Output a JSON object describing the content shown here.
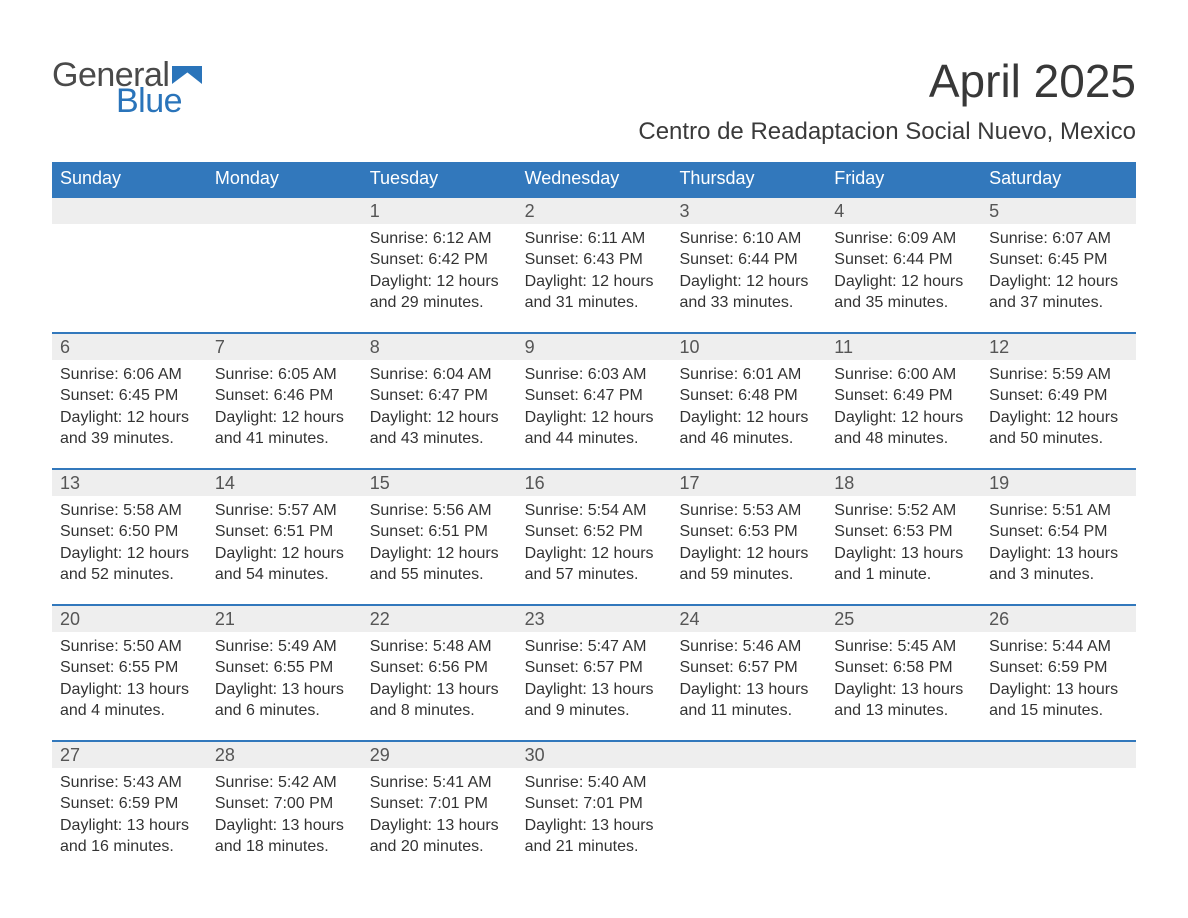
{
  "brand": {
    "word1": "General",
    "word2": "Blue",
    "tri_color": "#2a74ba",
    "text_gray": "#4a4a4a"
  },
  "title": "April 2025",
  "subtitle": "Centro de Readaptacion Social Nuevo, Mexico",
  "colors": {
    "header_bg": "#3278bc",
    "header_text": "#ffffff",
    "week_top_border": "#3278bc",
    "daynum_bg": "#eeeeee",
    "body_text": "#333333",
    "background": "#ffffff"
  },
  "fonts": {
    "month_title_pt": 46,
    "subtitle_pt": 24,
    "header_pt": 18,
    "daynum_pt": 18,
    "body_pt": 16
  },
  "weekdays": [
    "Sunday",
    "Monday",
    "Tuesday",
    "Wednesday",
    "Thursday",
    "Friday",
    "Saturday"
  ],
  "weeks": [
    [
      null,
      null,
      {
        "n": "1",
        "sunrise": "Sunrise: 6:12 AM",
        "sunset": "Sunset: 6:42 PM",
        "daylight": "Daylight: 12 hours and 29 minutes."
      },
      {
        "n": "2",
        "sunrise": "Sunrise: 6:11 AM",
        "sunset": "Sunset: 6:43 PM",
        "daylight": "Daylight: 12 hours and 31 minutes."
      },
      {
        "n": "3",
        "sunrise": "Sunrise: 6:10 AM",
        "sunset": "Sunset: 6:44 PM",
        "daylight": "Daylight: 12 hours and 33 minutes."
      },
      {
        "n": "4",
        "sunrise": "Sunrise: 6:09 AM",
        "sunset": "Sunset: 6:44 PM",
        "daylight": "Daylight: 12 hours and 35 minutes."
      },
      {
        "n": "5",
        "sunrise": "Sunrise: 6:07 AM",
        "sunset": "Sunset: 6:45 PM",
        "daylight": "Daylight: 12 hours and 37 minutes."
      }
    ],
    [
      {
        "n": "6",
        "sunrise": "Sunrise: 6:06 AM",
        "sunset": "Sunset: 6:45 PM",
        "daylight": "Daylight: 12 hours and 39 minutes."
      },
      {
        "n": "7",
        "sunrise": "Sunrise: 6:05 AM",
        "sunset": "Sunset: 6:46 PM",
        "daylight": "Daylight: 12 hours and 41 minutes."
      },
      {
        "n": "8",
        "sunrise": "Sunrise: 6:04 AM",
        "sunset": "Sunset: 6:47 PM",
        "daylight": "Daylight: 12 hours and 43 minutes."
      },
      {
        "n": "9",
        "sunrise": "Sunrise: 6:03 AM",
        "sunset": "Sunset: 6:47 PM",
        "daylight": "Daylight: 12 hours and 44 minutes."
      },
      {
        "n": "10",
        "sunrise": "Sunrise: 6:01 AM",
        "sunset": "Sunset: 6:48 PM",
        "daylight": "Daylight: 12 hours and 46 minutes."
      },
      {
        "n": "11",
        "sunrise": "Sunrise: 6:00 AM",
        "sunset": "Sunset: 6:49 PM",
        "daylight": "Daylight: 12 hours and 48 minutes."
      },
      {
        "n": "12",
        "sunrise": "Sunrise: 5:59 AM",
        "sunset": "Sunset: 6:49 PM",
        "daylight": "Daylight: 12 hours and 50 minutes."
      }
    ],
    [
      {
        "n": "13",
        "sunrise": "Sunrise: 5:58 AM",
        "sunset": "Sunset: 6:50 PM",
        "daylight": "Daylight: 12 hours and 52 minutes."
      },
      {
        "n": "14",
        "sunrise": "Sunrise: 5:57 AM",
        "sunset": "Sunset: 6:51 PM",
        "daylight": "Daylight: 12 hours and 54 minutes."
      },
      {
        "n": "15",
        "sunrise": "Sunrise: 5:56 AM",
        "sunset": "Sunset: 6:51 PM",
        "daylight": "Daylight: 12 hours and 55 minutes."
      },
      {
        "n": "16",
        "sunrise": "Sunrise: 5:54 AM",
        "sunset": "Sunset: 6:52 PM",
        "daylight": "Daylight: 12 hours and 57 minutes."
      },
      {
        "n": "17",
        "sunrise": "Sunrise: 5:53 AM",
        "sunset": "Sunset: 6:53 PM",
        "daylight": "Daylight: 12 hours and 59 minutes."
      },
      {
        "n": "18",
        "sunrise": "Sunrise: 5:52 AM",
        "sunset": "Sunset: 6:53 PM",
        "daylight": "Daylight: 13 hours and 1 minute."
      },
      {
        "n": "19",
        "sunrise": "Sunrise: 5:51 AM",
        "sunset": "Sunset: 6:54 PM",
        "daylight": "Daylight: 13 hours and 3 minutes."
      }
    ],
    [
      {
        "n": "20",
        "sunrise": "Sunrise: 5:50 AM",
        "sunset": "Sunset: 6:55 PM",
        "daylight": "Daylight: 13 hours and 4 minutes."
      },
      {
        "n": "21",
        "sunrise": "Sunrise: 5:49 AM",
        "sunset": "Sunset: 6:55 PM",
        "daylight": "Daylight: 13 hours and 6 minutes."
      },
      {
        "n": "22",
        "sunrise": "Sunrise: 5:48 AM",
        "sunset": "Sunset: 6:56 PM",
        "daylight": "Daylight: 13 hours and 8 minutes."
      },
      {
        "n": "23",
        "sunrise": "Sunrise: 5:47 AM",
        "sunset": "Sunset: 6:57 PM",
        "daylight": "Daylight: 13 hours and 9 minutes."
      },
      {
        "n": "24",
        "sunrise": "Sunrise: 5:46 AM",
        "sunset": "Sunset: 6:57 PM",
        "daylight": "Daylight: 13 hours and 11 minutes."
      },
      {
        "n": "25",
        "sunrise": "Sunrise: 5:45 AM",
        "sunset": "Sunset: 6:58 PM",
        "daylight": "Daylight: 13 hours and 13 minutes."
      },
      {
        "n": "26",
        "sunrise": "Sunrise: 5:44 AM",
        "sunset": "Sunset: 6:59 PM",
        "daylight": "Daylight: 13 hours and 15 minutes."
      }
    ],
    [
      {
        "n": "27",
        "sunrise": "Sunrise: 5:43 AM",
        "sunset": "Sunset: 6:59 PM",
        "daylight": "Daylight: 13 hours and 16 minutes."
      },
      {
        "n": "28",
        "sunrise": "Sunrise: 5:42 AM",
        "sunset": "Sunset: 7:00 PM",
        "daylight": "Daylight: 13 hours and 18 minutes."
      },
      {
        "n": "29",
        "sunrise": "Sunrise: 5:41 AM",
        "sunset": "Sunset: 7:01 PM",
        "daylight": "Daylight: 13 hours and 20 minutes."
      },
      {
        "n": "30",
        "sunrise": "Sunrise: 5:40 AM",
        "sunset": "Sunset: 7:01 PM",
        "daylight": "Daylight: 13 hours and 21 minutes."
      },
      null,
      null,
      null
    ]
  ]
}
